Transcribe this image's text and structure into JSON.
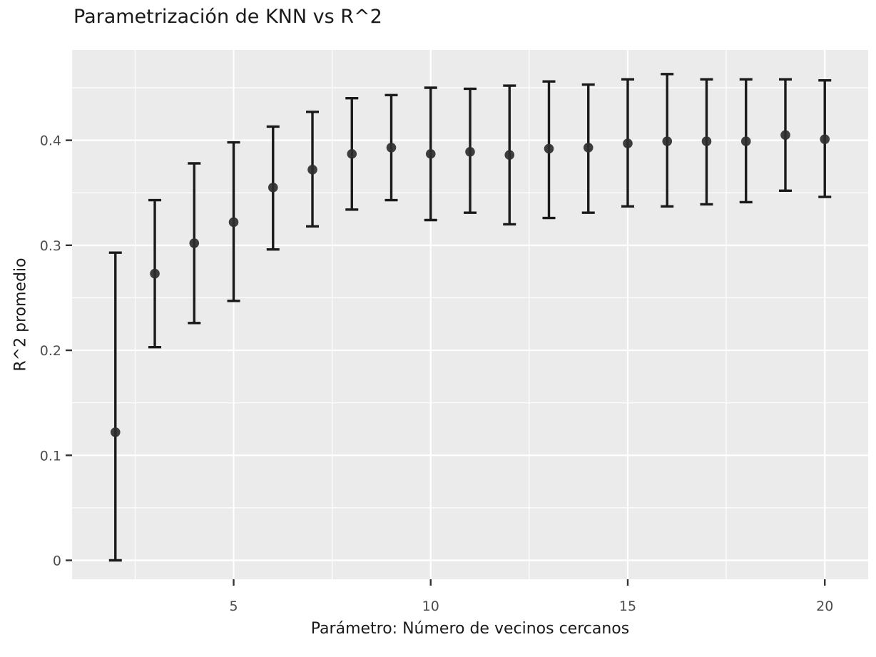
{
  "chart_data": {
    "type": "scatter",
    "title": "Parametrización de KNN vs R^2",
    "xlabel": "Parámetro: Número de vecinos cercanos",
    "ylabel": "R^2 promedio",
    "x": [
      2,
      3,
      4,
      5,
      6,
      7,
      8,
      9,
      10,
      11,
      12,
      13,
      14,
      15,
      16,
      17,
      18,
      19,
      20
    ],
    "series": [
      {
        "name": "R^2 promedio",
        "values": [
          0.122,
          0.273,
          0.302,
          0.322,
          0.355,
          0.372,
          0.387,
          0.393,
          0.387,
          0.389,
          0.386,
          0.392,
          0.393,
          0.397,
          0.399,
          0.399,
          0.399,
          0.405,
          0.401
        ]
      }
    ],
    "error_low": [
      0.0,
      0.203,
      0.226,
      0.247,
      0.296,
      0.318,
      0.334,
      0.343,
      0.324,
      0.331,
      0.32,
      0.326,
      0.331,
      0.337,
      0.337,
      0.339,
      0.341,
      0.352,
      0.346
    ],
    "error_high": [
      0.293,
      0.343,
      0.378,
      0.398,
      0.413,
      0.427,
      0.44,
      0.443,
      0.45,
      0.449,
      0.452,
      0.456,
      0.453,
      0.458,
      0.463,
      0.458,
      0.458,
      0.458,
      0.457
    ],
    "x_ticks": [
      5,
      10,
      15,
      20
    ],
    "x_tick_labels": [
      "5",
      "10",
      "15",
      "20"
    ],
    "y_ticks": [
      0,
      0.1,
      0.2,
      0.3,
      0.4
    ],
    "y_tick_labels": [
      "0",
      "0.1",
      "0.2",
      "0.3",
      "0.4"
    ],
    "x_minor_ticks": [
      2.5,
      7.5,
      12.5,
      17.5
    ],
    "y_minor_ticks": [
      0.05,
      0.15,
      0.25,
      0.35,
      0.45
    ],
    "xlim": [
      0.9,
      21.1
    ],
    "ylim": [
      -0.018,
      0.486
    ],
    "grid": true,
    "legend": false,
    "colors": {
      "figure_bg": "#FFFFFF",
      "panel_bg": "#EBEBEB",
      "grid": "#FFFFFF",
      "point": "#2E2E2E",
      "error_bar": "#1A1A1A",
      "tick_mark": "#333333",
      "tick_text": "#4D4D4D",
      "title_text": "#1A1A1A"
    }
  }
}
